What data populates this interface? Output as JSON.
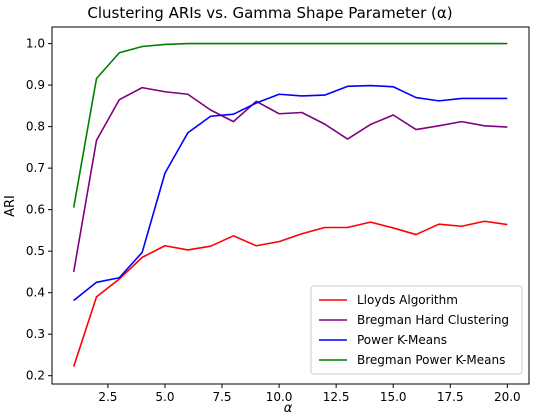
{
  "chart_data": {
    "type": "line",
    "title": "Clustering ARIs vs. Gamma Shape Parameter (α)",
    "xlabel": "α",
    "ylabel": "ARI",
    "xlim": [
      0.05,
      20.95
    ],
    "ylim": [
      0.18,
      1.04
    ],
    "xticks": [
      2.5,
      5.0,
      7.5,
      10.0,
      12.5,
      15.0,
      17.5,
      20.0
    ],
    "xtick_labels": [
      "2.5",
      "5.0",
      "7.5",
      "10.0",
      "12.5",
      "15.0",
      "17.5",
      "20.0"
    ],
    "yticks": [
      0.2,
      0.3,
      0.4,
      0.5,
      0.6,
      0.7,
      0.8,
      0.9,
      1.0
    ],
    "ytick_labels": [
      "0.2",
      "0.3",
      "0.4",
      "0.5",
      "0.6",
      "0.7",
      "0.8",
      "0.9",
      "1.0"
    ],
    "grid": false,
    "legend_position": "bottom-right",
    "x": [
      1,
      2,
      3,
      4,
      5,
      6,
      7,
      8,
      9,
      10,
      11,
      12,
      13,
      14,
      15,
      16,
      17,
      18,
      19,
      20
    ],
    "series": [
      {
        "name": "Lloyds Algorithm",
        "color": "#ff0000",
        "values": [
          0.222,
          0.39,
          0.433,
          0.485,
          0.513,
          0.503,
          0.512,
          0.537,
          0.513,
          0.523,
          0.542,
          0.557,
          0.557,
          0.57,
          0.556,
          0.54,
          0.565,
          0.56,
          0.572,
          0.564
        ]
      },
      {
        "name": "Bregman Hard Clustering",
        "color": "#800080",
        "values": [
          0.45,
          0.767,
          0.865,
          0.894,
          0.884,
          0.878,
          0.84,
          0.812,
          0.861,
          0.831,
          0.834,
          0.806,
          0.77,
          0.805,
          0.828,
          0.793,
          0.802,
          0.812,
          0.802,
          0.799
        ]
      },
      {
        "name": "Power K-Means",
        "color": "#0000ff",
        "values": [
          0.381,
          0.425,
          0.436,
          0.497,
          0.688,
          0.785,
          0.825,
          0.83,
          0.857,
          0.878,
          0.874,
          0.876,
          0.897,
          0.899,
          0.896,
          0.87,
          0.862,
          0.868,
          0.868,
          0.868
        ]
      },
      {
        "name": "Bregman Power K-Means",
        "color": "#008000",
        "values": [
          0.605,
          0.916,
          0.978,
          0.993,
          0.998,
          1.0,
          1.0,
          1.0,
          1.0,
          1.0,
          1.0,
          1.0,
          1.0,
          1.0,
          1.0,
          1.0,
          1.0,
          1.0,
          1.0,
          1.0
        ]
      }
    ]
  }
}
